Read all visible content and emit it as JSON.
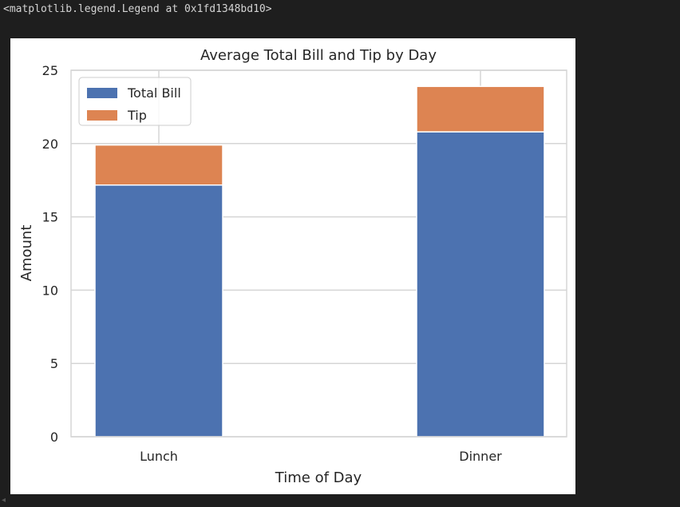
{
  "output_text": "<matplotlib.legend.Legend at 0x1fd1348bd10>",
  "chart_data": {
    "type": "bar",
    "stacked": true,
    "title": "Average Total Bill and Tip by Day",
    "xlabel": "Time of Day",
    "ylabel": "Amount",
    "categories": [
      "Lunch",
      "Dinner"
    ],
    "series": [
      {
        "name": "Total Bill",
        "values": [
          17.17,
          20.8
        ],
        "color": "#4c72b0"
      },
      {
        "name": "Tip",
        "values": [
          2.73,
          3.1
        ],
        "color": "#dd8452"
      }
    ],
    "ylim": [
      0,
      25
    ],
    "yticks": [
      0,
      5,
      10,
      15,
      20,
      25
    ],
    "grid": true,
    "legend": "upper-left"
  },
  "colors": {
    "grid": "#d5d5d5",
    "axis_text": "#262626",
    "background": "#ffffff"
  }
}
